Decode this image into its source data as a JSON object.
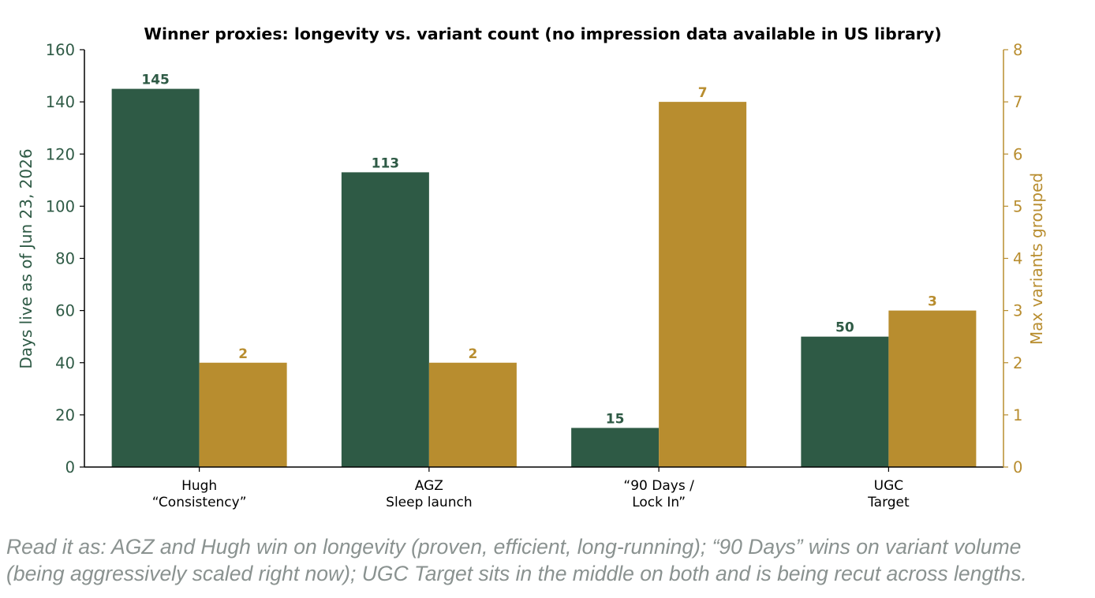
{
  "chart_data": {
    "type": "bar",
    "title": "Winner proxies: longevity vs. variant count (no impression data available in US library)",
    "categories": [
      [
        "Hugh",
        "“Consistency”"
      ],
      [
        "AGZ",
        "Sleep launch"
      ],
      [
        "“90 Days /",
        "Lock In”"
      ],
      [
        "UGC",
        "Target"
      ]
    ],
    "series": [
      {
        "name": "Days live as of Jun 23, 2026",
        "axis": "left",
        "values": [
          145,
          113,
          15,
          50
        ],
        "color": "#2e5a45"
      },
      {
        "name": "Max variants grouped",
        "axis": "right",
        "values": [
          2,
          2,
          7,
          3
        ],
        "color": "#b88d2f"
      }
    ],
    "ylabel_left": "Days live as of Jun 23, 2026",
    "ylabel_right": "Max variants grouped",
    "ylim_left": [
      0,
      160
    ],
    "ylim_right": [
      0,
      8
    ],
    "yticks_left": [
      0,
      20,
      40,
      60,
      80,
      100,
      120,
      140,
      160
    ],
    "yticks_right": [
      0,
      1,
      2,
      3,
      4,
      5,
      6,
      7,
      8
    ],
    "grid": false,
    "legend": "none"
  },
  "caption": {
    "line1": "Read it as: AGZ and Hugh win on longevity (proven, efficient, long-running); “90 Days” wins on variant volume",
    "line2": "(being aggressively scaled right now); UGC Target sits in the middle on both and is being recut across lengths."
  }
}
